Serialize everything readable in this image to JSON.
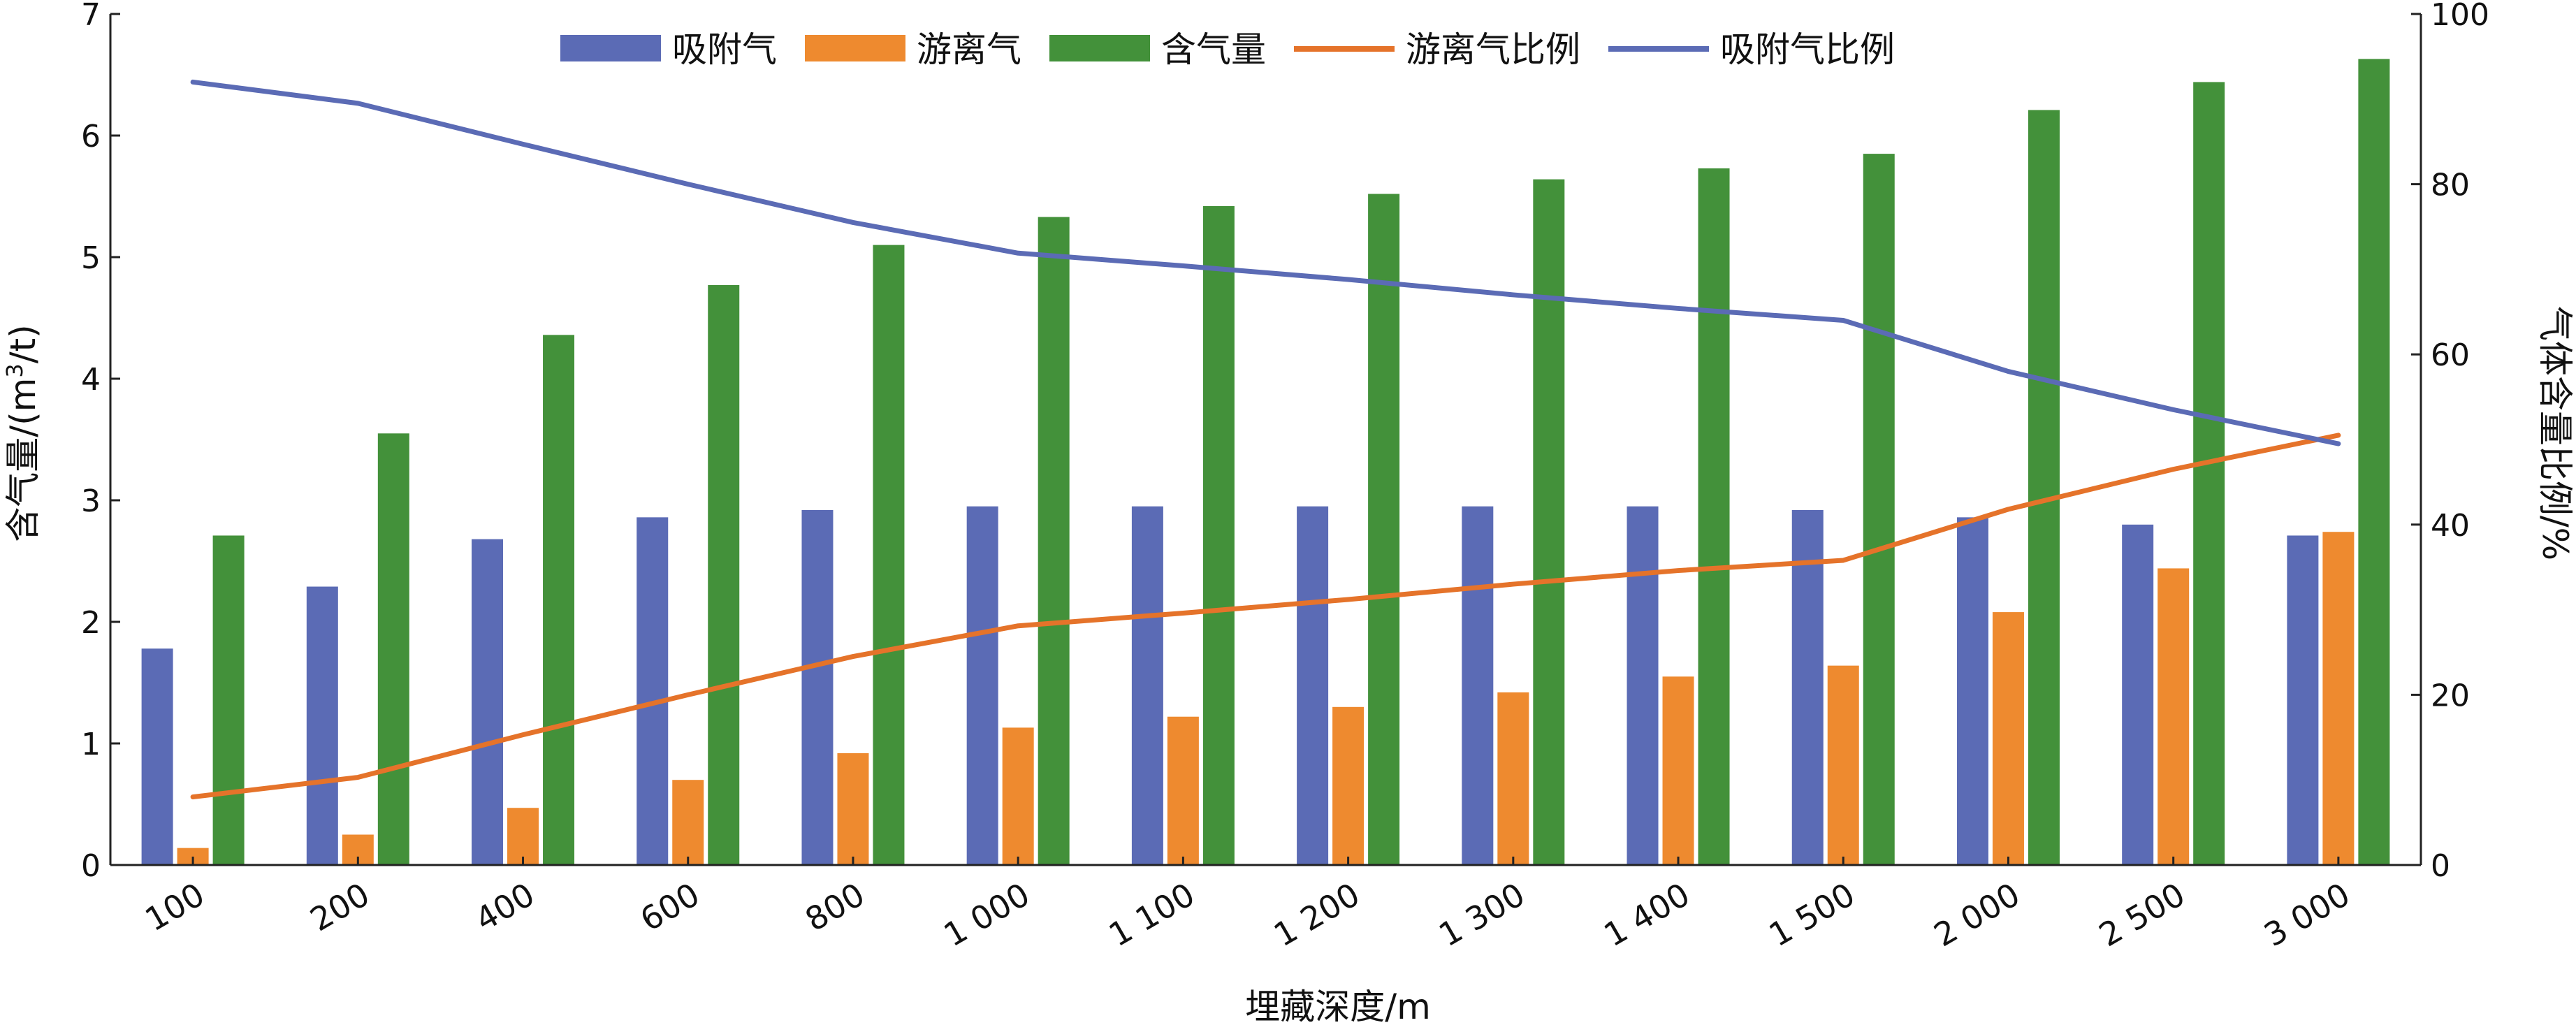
{
  "chart_data": {
    "type": "bar",
    "categories": [
      "100",
      "200",
      "400",
      "600",
      "800",
      "1 000",
      "1 100",
      "1 200",
      "1 300",
      "1 400",
      "1 500",
      "2 000",
      "2 500",
      "3 000"
    ],
    "series": [
      {
        "name": "吸附气",
        "type": "bar",
        "axis": "left",
        "color": "#5b6bb5",
        "values": [
          1.78,
          2.29,
          2.68,
          2.86,
          2.92,
          2.95,
          2.95,
          2.95,
          2.95,
          2.95,
          2.92,
          2.86,
          2.8,
          2.71
        ]
      },
      {
        "name": "游离气",
        "type": "bar",
        "axis": "left",
        "color": "#ee8a2f",
        "values": [
          0.14,
          0.25,
          0.47,
          0.7,
          0.92,
          1.13,
          1.22,
          1.3,
          1.42,
          1.55,
          1.64,
          2.08,
          2.44,
          2.74
        ]
      },
      {
        "name": "含气量",
        "type": "bar",
        "axis": "left",
        "color": "#43913a",
        "values": [
          2.71,
          3.55,
          4.36,
          4.77,
          5.1,
          5.33,
          5.42,
          5.52,
          5.64,
          5.73,
          5.85,
          6.21,
          6.44,
          6.63
        ]
      },
      {
        "name": "游离气比例",
        "type": "line",
        "axis": "right",
        "color": "#e5732a",
        "values": [
          8.0,
          10.3,
          15.3,
          20.0,
          24.5,
          28.1,
          29.6,
          31.2,
          33.0,
          34.6,
          35.8,
          41.8,
          46.5,
          50.5
        ]
      },
      {
        "name": "吸附气比例",
        "type": "line",
        "axis": "right",
        "color": "#5b6bb5",
        "values": [
          92.0,
          89.5,
          84.7,
          80.0,
          75.5,
          71.9,
          70.4,
          68.8,
          67.0,
          65.4,
          64.0,
          58.0,
          53.5,
          49.5
        ]
      }
    ],
    "xlabel": "埋藏深度/m",
    "ylabel_left_prefix": "含气量/(m",
    "ylabel_left_sup": "3",
    "ylabel_left_suffix": "/t)",
    "ylabel_right": "气体含量比例/%",
    "ylim_left": [
      0,
      7
    ],
    "ylim_right": [
      0,
      100
    ],
    "yticks_left": [
      "0",
      "1",
      "2",
      "3",
      "4",
      "5",
      "6",
      "7"
    ],
    "yticks_right": [
      "0",
      "20",
      "40",
      "60",
      "80",
      "100"
    ],
    "legend_position": "top-center",
    "grid": false
  }
}
